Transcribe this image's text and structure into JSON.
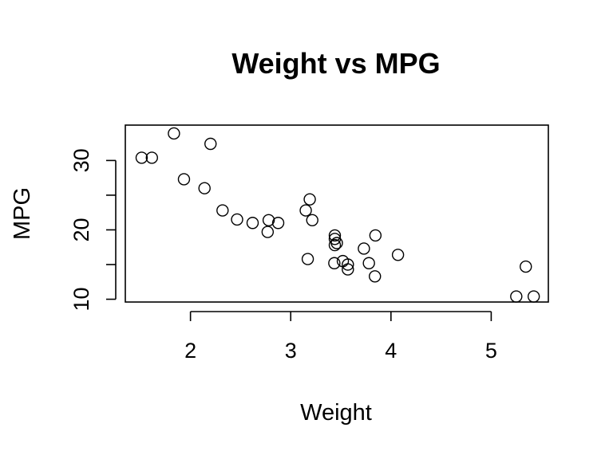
{
  "chart_data": {
    "type": "scatter",
    "title": "Weight vs MPG",
    "xlabel": "Weight",
    "ylabel": "MPG",
    "xlim": [
      1.35,
      5.57
    ],
    "ylim": [
      9.6,
      35.1
    ],
    "xticks": [
      2,
      3,
      4,
      5
    ],
    "yticks": [
      10,
      15,
      20,
      25,
      30
    ],
    "ytick_labels": [
      "10",
      "",
      "20",
      "",
      "30"
    ],
    "grid": false,
    "legend": "none",
    "series": [
      {
        "x": [
          1.513,
          1.615,
          1.835,
          1.935,
          2.14,
          2.2,
          2.32,
          2.465,
          2.62,
          2.77,
          2.78,
          2.875,
          3.15,
          3.17,
          3.19,
          3.215,
          3.435,
          3.44,
          3.44,
          3.44,
          3.46,
          3.52,
          3.57,
          3.57,
          3.73,
          3.78,
          3.84,
          3.845,
          4.07,
          5.25,
          5.345,
          5.424
        ],
        "y": [
          30.4,
          30.4,
          33.9,
          27.3,
          26.0,
          32.4,
          22.8,
          21.5,
          21.0,
          19.7,
          21.4,
          21.0,
          22.8,
          15.8,
          24.4,
          21.4,
          15.2,
          18.7,
          19.2,
          17.8,
          18.1,
          15.5,
          15.0,
          14.3,
          17.3,
          15.2,
          13.3,
          19.2,
          16.4,
          10.4,
          14.7,
          10.4
        ]
      }
    ]
  }
}
